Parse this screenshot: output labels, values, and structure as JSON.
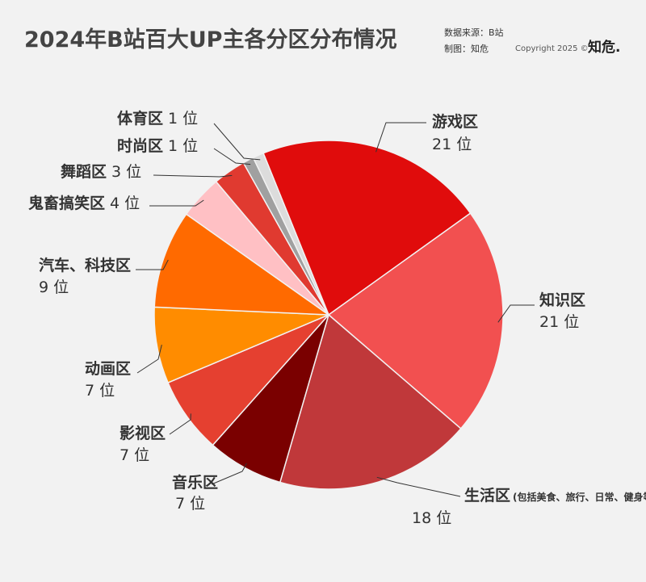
{
  "chart_data": {
    "type": "pie",
    "title": "2024年B站百大UP主各分区分布情况",
    "source": "数据来源：B站",
    "credit": "制图：知危",
    "copyright": "Copyright 2025 ©",
    "logo": "知危.",
    "categories": [
      "游戏区",
      "知识区",
      "生活区",
      "音乐区",
      "影视区",
      "动画区",
      "汽车、科技区",
      "鬼畜搞笑区",
      "舞蹈区",
      "时尚区",
      "体育区"
    ],
    "values": [
      21,
      21,
      18,
      7,
      7,
      7,
      9,
      4,
      3,
      1,
      1
    ],
    "value_labels": [
      "21 位",
      "21 位",
      "18 位",
      "7 位",
      "7 位",
      "7 位",
      "9 位",
      "4 位",
      "3 位",
      "1 位",
      "1 位"
    ],
    "annotation": "(包括美食、旅行、日常、健身等)",
    "colors": [
      "#e00c0c",
      "#f25050",
      "#c0383a",
      "#7a0000",
      "#e54030",
      "#ff8c00",
      "#ff6a00",
      "#ffc0c4",
      "#e03a30",
      "#a0a0a0",
      "#dcdcdc"
    ]
  }
}
